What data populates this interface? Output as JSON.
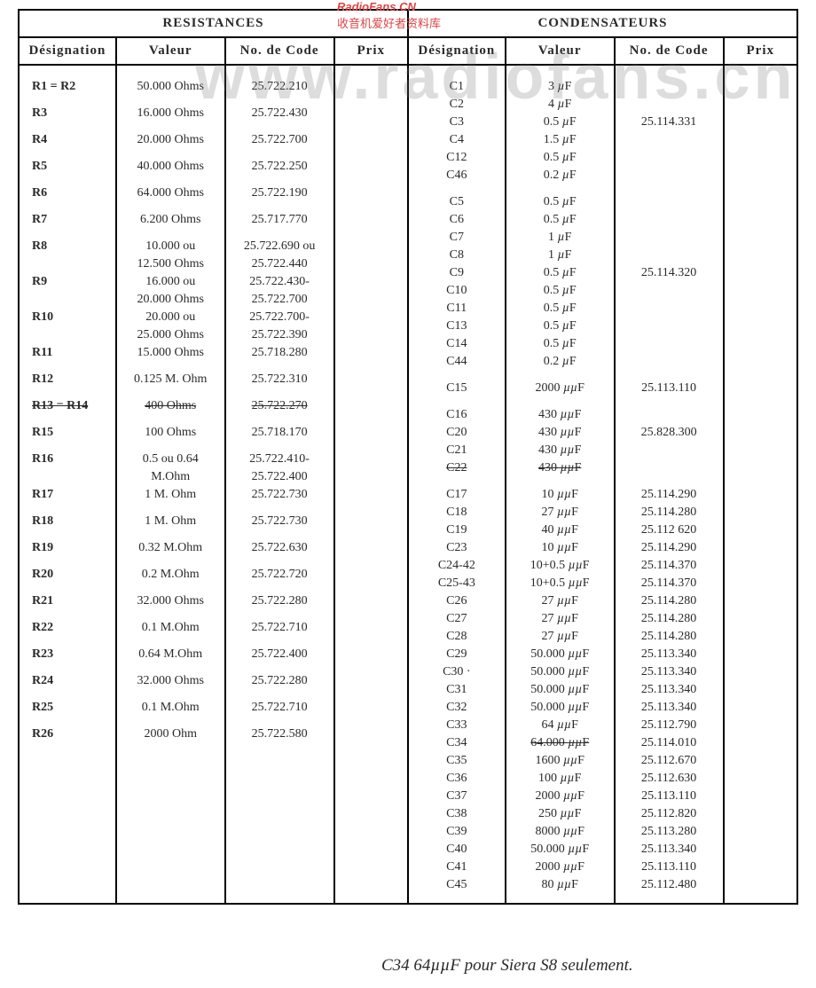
{
  "watermark_big": "www.radiofans.cn",
  "watermark_label": "RadioFans.CN",
  "watermark_cn": "收音机爱好者资料库",
  "sections": {
    "res": "RESISTANCES",
    "con": "CONDENSATEURS"
  },
  "headers": {
    "des": "Désignation",
    "val": "Valeur",
    "code": "No. de Code",
    "prix": "Prix"
  },
  "res": [
    {
      "d": "R1 = R2",
      "v": "50.000 Ohms",
      "c": "25.722.210"
    },
    {
      "d": "R3",
      "v": "16.000 Ohms",
      "c": "25.722.430"
    },
    {
      "d": "R4",
      "v": "20.000 Ohms",
      "c": "25.722.700"
    },
    {
      "d": "R5",
      "v": "40.000 Ohms",
      "c": "25.722.250"
    },
    {
      "d": "R6",
      "v": "64.000 Ohms",
      "c": "25.722.190"
    },
    {
      "d": "R7",
      "v": "6.200 Ohms",
      "c": "25.717.770"
    },
    {
      "d": "R8",
      "v": "10.000 ou",
      "c": "25.722.690 ou",
      "half": true
    },
    {
      "d": "",
      "v": "12.500 Ohms",
      "c": "25.722.440",
      "half": true
    },
    {
      "d": "R9",
      "v": "16.000 ou",
      "c": "25.722.430-",
      "half": true
    },
    {
      "d": "",
      "v": "20.000 Ohms",
      "c": "25.722.700",
      "half": true
    },
    {
      "d": "R10",
      "v": "20.000 ou",
      "c": "25.722.700-",
      "half": true
    },
    {
      "d": "",
      "v": "25.000 Ohms",
      "c": "25.722.390",
      "half": true
    },
    {
      "d": "R11",
      "v": "15.000 Ohms",
      "c": "25.718.280"
    },
    {
      "d": "R12",
      "v": "0.125 M. Ohm",
      "c": "25.722.310"
    },
    {
      "d": "R13 = R14",
      "v": "400 Ohms",
      "c": "25.722.270",
      "strike": true
    },
    {
      "d": "R15",
      "v": "100 Ohms",
      "c": "25.718.170"
    },
    {
      "d": "R16",
      "v": "0.5 ou 0.64",
      "c": "25.722.410-",
      "half": true
    },
    {
      "d": "",
      "v": "M.Ohm",
      "c": "25.722.400",
      "half": true
    },
    {
      "d": "R17",
      "v": "1 M. Ohm",
      "c": "25.722.730"
    },
    {
      "d": "R18",
      "v": "1 M. Ohm",
      "c": "25.722.730"
    },
    {
      "d": "R19",
      "v": "0.32 M.Ohm",
      "c": "25.722.630"
    },
    {
      "d": "R20",
      "v": "0.2 M.Ohm",
      "c": "25.722.720"
    },
    {
      "d": "R21",
      "v": "32.000 Ohms",
      "c": "25.722.280"
    },
    {
      "d": "R22",
      "v": "0.1 M.Ohm",
      "c": "25.722.710"
    },
    {
      "d": "R23",
      "v": "0.64 M.Ohm",
      "c": "25.722.400"
    },
    {
      "d": "R24",
      "v": "32.000 Ohms",
      "c": "25.722.280"
    },
    {
      "d": "R25",
      "v": "0.1 M.Ohm",
      "c": "25.722.710"
    },
    {
      "d": "R26",
      "v": "2000 Ohm",
      "c": "25.722.580"
    }
  ],
  "con": [
    {
      "d": "C1",
      "v": "3  µF",
      "c": ""
    },
    {
      "d": "C2",
      "v": "4  µF",
      "c": ""
    },
    {
      "d": "C3",
      "v": "0.5 µF",
      "c": "25.114.331",
      "brace": "6a"
    },
    {
      "d": "C4",
      "v": "1.5 µF",
      "c": ""
    },
    {
      "d": "C12",
      "v": "0.5 µF",
      "c": ""
    },
    {
      "d": "C46",
      "v": "0.2 µF",
      "c": ""
    },
    {
      "spacer": true
    },
    {
      "d": "C5",
      "v": "0.5 µF",
      "c": ""
    },
    {
      "d": "C6",
      "v": "0.5 µF",
      "c": ""
    },
    {
      "d": "C7",
      "v": "1  µF",
      "c": ""
    },
    {
      "d": "C8",
      "v": "1  µF",
      "c": ""
    },
    {
      "d": "C9",
      "v": "0.5 µF",
      "c": "25.114.320",
      "brace": "10a"
    },
    {
      "d": "C10",
      "v": "0.5 µF",
      "c": ""
    },
    {
      "d": "C11",
      "v": "0.5 µF",
      "c": ""
    },
    {
      "d": "C13",
      "v": "0.5 µF",
      "c": ""
    },
    {
      "d": "C14",
      "v": "0.5 µF",
      "c": ""
    },
    {
      "d": "C44",
      "v": "0.2 µF",
      "c": ""
    },
    {
      "spacer": true
    },
    {
      "d": "C15",
      "v": "2000 µµF",
      "c": "25.113.110"
    },
    {
      "spacer": true
    },
    {
      "d": "C16",
      "v": "430 µµF",
      "c": ""
    },
    {
      "d": "C20",
      "v": "430 µµF",
      "c": "25.828.300",
      "brace": "4a"
    },
    {
      "d": "C21",
      "v": "430 µµF",
      "c": ""
    },
    {
      "d": "C22",
      "v": "430 µµF",
      "c": "",
      "strike": true
    },
    {
      "spacer": true
    },
    {
      "d": "C17",
      "v": "10 µµF",
      "c": "25.114.290"
    },
    {
      "d": "C18",
      "v": "27 µµF",
      "c": "25.114.280"
    },
    {
      "d": "C19",
      "v": "40 µµF",
      "c": "25.112 620"
    },
    {
      "d": "C23",
      "v": "10 µµF",
      "c": "25.114.290"
    },
    {
      "d": "C24-42",
      "v": "10+0.5 µµF",
      "c": "25.114.370"
    },
    {
      "d": "C25-43",
      "v": "10+0.5 µµF",
      "c": "25.114.370"
    },
    {
      "d": "C26",
      "v": "27 µµF",
      "c": "25.114.280"
    },
    {
      "d": "C27",
      "v": "27 µµF",
      "c": "25.114.280"
    },
    {
      "d": "C28",
      "v": "27 µµF",
      "c": "25.114.280"
    },
    {
      "d": "C29",
      "v": "50.000 µµF",
      "c": "25.113.340"
    },
    {
      "d": "C30 ·",
      "v": "50.000 µµF",
      "c": "25.113.340"
    },
    {
      "d": "C31",
      "v": "50.000 µµF",
      "c": "25.113.340"
    },
    {
      "d": "C32",
      "v": "50.000 µµF",
      "c": "25.113.340"
    },
    {
      "d": "C33",
      "v": "64 µµF",
      "c": "25.112.790"
    },
    {
      "d": "C34",
      "v": "64.000 µµF",
      "c": "25.114.010",
      "strike_val": true
    },
    {
      "d": "C35",
      "v": "1600 µµF",
      "c": "25.112.670"
    },
    {
      "d": "C36",
      "v": "100 µµF",
      "c": "25.112.630"
    },
    {
      "d": "C37",
      "v": "2000 µµF",
      "c": "25.113.110"
    },
    {
      "d": "C38",
      "v": "250 µµF",
      "c": "25.112.820"
    },
    {
      "d": "C39",
      "v": "8000 µµF",
      "c": "25.113.280"
    },
    {
      "d": "C40",
      "v": "50.000 µµF",
      "c": "25.113.340"
    },
    {
      "d": "C41",
      "v": "2000 µµF",
      "c": "25.113.110"
    },
    {
      "d": "C45",
      "v": "80 µµF",
      "c": "25.112.480"
    }
  ],
  "hand_x": "? ✗",
  "hand_note": "C34   64µµF  pour Siera S8  seulement.",
  "colors": {
    "border": "#000000",
    "text": "#2a2a2a",
    "bg": "#ffffff",
    "red": "#d44"
  },
  "col_widths_pct": {
    "des": 12.5,
    "val": 14,
    "code": 14,
    "prix": 9.5
  }
}
